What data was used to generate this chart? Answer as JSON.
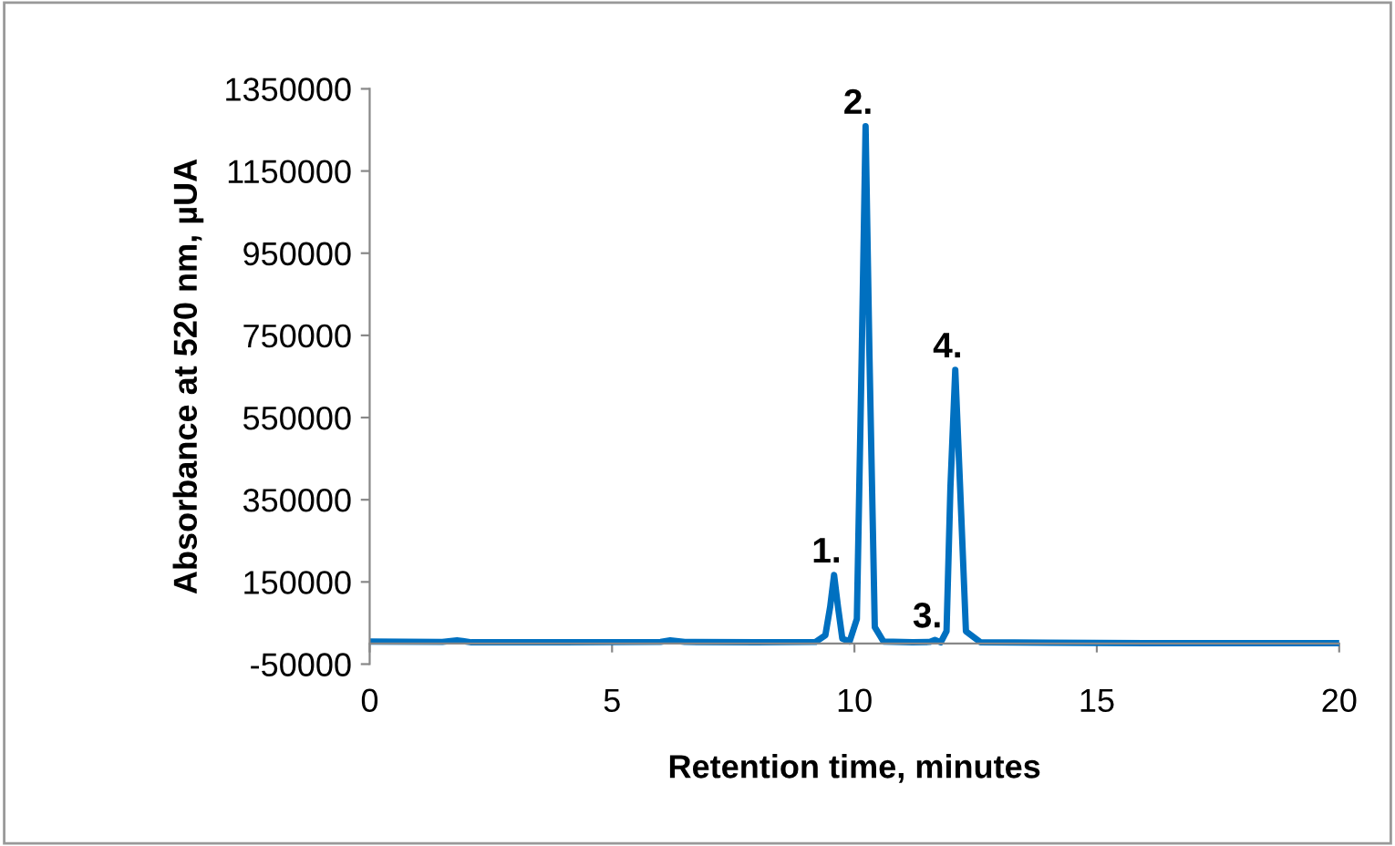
{
  "chart_data": {
    "type": "line",
    "xlabel": "Retention time, minutes",
    "ylabel": "Absorbance at 520 nm, µUA",
    "x": [
      0,
      1.5,
      1.8,
      2.1,
      4,
      6,
      6.2,
      6.5,
      8,
      9.2,
      9.4,
      9.5,
      9.58,
      9.66,
      9.75,
      9.9,
      10.05,
      10.15,
      10.23,
      10.31,
      10.42,
      10.6,
      11.2,
      11.55,
      11.66,
      11.78,
      11.9,
      11.98,
      12.08,
      12.18,
      12.3,
      12.6,
      14,
      16,
      18,
      20
    ],
    "series": [
      {
        "color": "#0070c0",
        "values": [
          5000,
          4000,
          8000,
          3000,
          3000,
          4000,
          8000,
          4000,
          3000,
          4000,
          20000,
          90000,
          167000,
          90000,
          12000,
          5000,
          60000,
          700000,
          1259000,
          700000,
          40000,
          5000,
          3000,
          4000,
          9000,
          3000,
          30000,
          380000,
          666000,
          380000,
          30000,
          3000,
          2000,
          1000,
          1000,
          1000
        ]
      }
    ],
    "xlim": [
      0,
      20
    ],
    "xticks": [
      0,
      5,
      10,
      15,
      20
    ],
    "ylim": [
      -50000,
      1350000
    ],
    "yticks": [
      -50000,
      150000,
      350000,
      550000,
      750000,
      950000,
      1150000,
      1350000
    ],
    "grid": false,
    "legend": false,
    "marker": "none",
    "line_style": "solid",
    "annotations": [
      {
        "text": "1.",
        "x": 9.58,
        "y": 167000
      },
      {
        "text": "2.",
        "x": 10.23,
        "y": 1259000
      },
      {
        "text": "3.",
        "x": 11.66,
        "y": 9000
      },
      {
        "text": "4.",
        "x": 12.08,
        "y": 666000
      }
    ]
  }
}
